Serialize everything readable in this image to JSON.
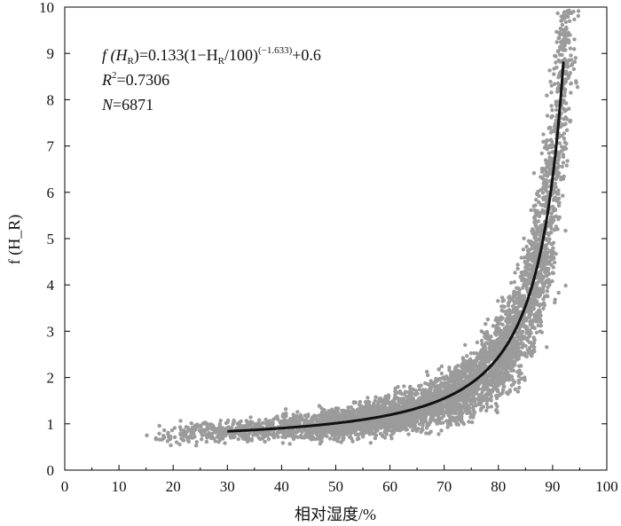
{
  "chart_data": {
    "type": "scatter",
    "ylabel": "f (H_R)",
    "xlabel": "相对湿度/%",
    "xlim": [
      0,
      100
    ],
    "ylim": [
      0,
      10
    ],
    "x_ticks": [
      "0",
      "10",
      "20",
      "30",
      "40",
      "50",
      "60",
      "70",
      "80",
      "90",
      "100"
    ],
    "y_ticks": [
      "0",
      "1",
      "2",
      "3",
      "4",
      "5",
      "6",
      "7",
      "8",
      "9",
      "10"
    ],
    "annotations": {
      "equation_lhs": "f (H",
      "equation_sub": "R",
      "equation_mid1": ")=0.133(1−H",
      "equation_mid2": "/100)",
      "equation_exp": "(−1.633)",
      "equation_tail": "+0.6",
      "r2_label": "R",
      "r2_sup": "2",
      "r2_value": "=0.7306",
      "n_label": "N",
      "n_value": "=6871"
    },
    "fit": {
      "a": 0.133,
      "b": -1.633,
      "c": 0.6,
      "x_range": [
        30,
        92
      ],
      "color": "#111111"
    },
    "scatter_color": "#9b9b9b",
    "n_points": 6871,
    "grid": false
  }
}
